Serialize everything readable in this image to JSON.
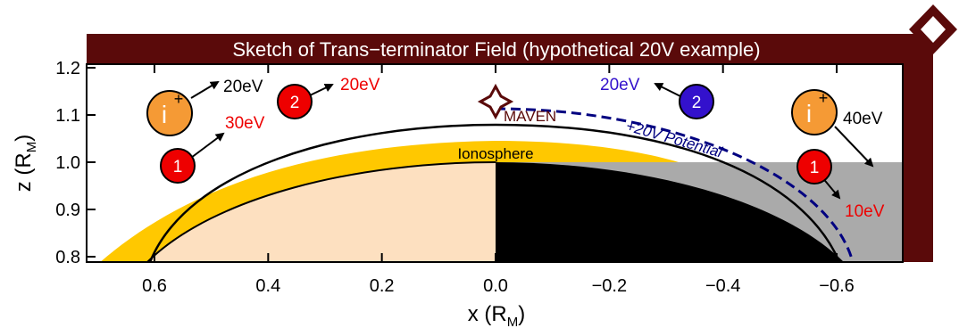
{
  "title": "Sketch of Trans−terminator Field (hypothetical 20V example)",
  "axes": {
    "xlabel": {
      "main": "x (R",
      "sub": "M",
      "close": ")"
    },
    "ylabel": {
      "main": "z (R",
      "sub": "M",
      "close": ")"
    },
    "xticks": [
      {
        "value": 0.6,
        "label": "0.6"
      },
      {
        "value": 0.4,
        "label": "0.4"
      },
      {
        "value": 0.2,
        "label": "0.2"
      },
      {
        "value": 0.0,
        "label": "0.0"
      },
      {
        "value": -0.2,
        "label": "−0.2"
      },
      {
        "value": -0.4,
        "label": "−0.4"
      },
      {
        "value": -0.6,
        "label": "−0.6"
      }
    ],
    "yticks": [
      {
        "value": 0.8,
        "label": "0.8"
      },
      {
        "value": 0.9,
        "label": "0.9"
      },
      {
        "value": 1.0,
        "label": "1.0"
      },
      {
        "value": 1.1,
        "label": "1.1"
      },
      {
        "value": 1.2,
        "label": "1.2"
      }
    ]
  },
  "labels": {
    "ionosphere": "Ionosphere",
    "maven": "MAVEN",
    "potential": "+20V Potential"
  },
  "particles": {
    "ion_left": {
      "symbol": "i",
      "sup": "+"
    },
    "ion_right": {
      "symbol": "i",
      "sup": "+"
    },
    "e1_left": "1",
    "e2_left": "2",
    "e2_right": "2",
    "e1_right": "1"
  },
  "energies": {
    "ion_left_out": "20eV",
    "e1_left_out": "30eV",
    "e2_left_out": "20eV",
    "e2_right_out": "20eV",
    "ion_right_out": "40eV",
    "e1_right_out": "10eV"
  },
  "colors": {
    "frame": "#5a0a0a",
    "ionosphere": "#ffc800",
    "dayside": "#fde0c0",
    "nightside": "#000000",
    "shadow": "#aaaaaa",
    "potential": "#000080",
    "electron1": "#ee0000",
    "electron2_right": "#3311cc",
    "ion": "#f59a35",
    "red_text": "#ee0000",
    "blue_text": "#3311cc",
    "maven_text": "#5a0a0a"
  }
}
